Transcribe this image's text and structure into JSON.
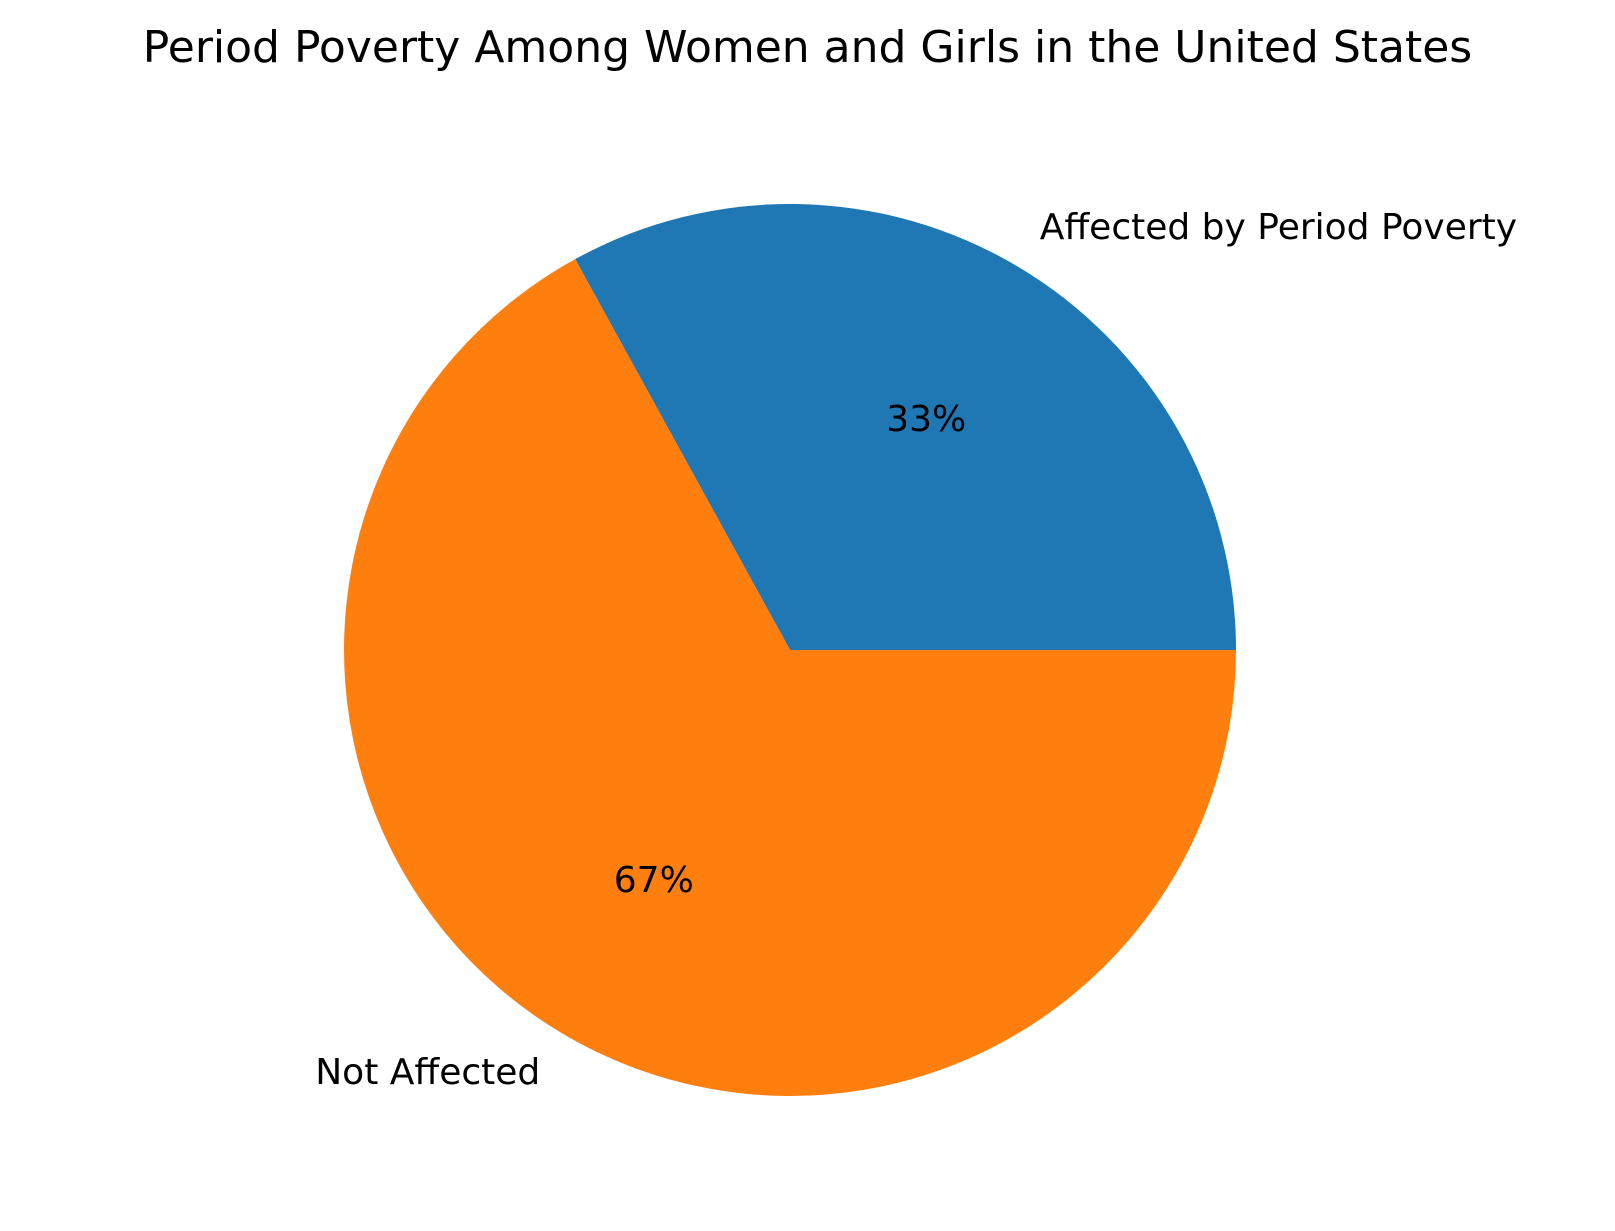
{
  "chart_data": {
    "type": "pie",
    "title": "Period Poverty Among Women and Girls in the United States",
    "labels": [
      "Affected by Period Poverty",
      "Not Affected"
    ],
    "values": [
      33,
      67
    ],
    "percent_labels": [
      "33%",
      "67%"
    ],
    "colors": [
      "#1f77b4",
      "#ff7f0e"
    ],
    "start_angle_deg": 0,
    "direction": "counterclockwise"
  }
}
